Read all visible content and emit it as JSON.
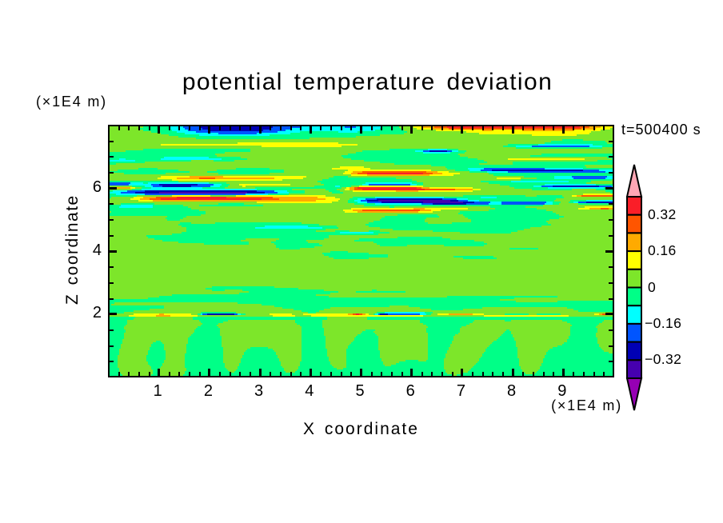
{
  "window": {
    "background": "#ffffff"
  },
  "chart_data": {
    "type": "filled_contour",
    "title": "potential temperature deviation",
    "annotation": "t=500400 s",
    "xlabel": "X coordinate",
    "x_unit": "(×1E4 m)",
    "ylabel": "Z coordinate",
    "y_unit": "(×1E4 m)",
    "x_range": [
      0,
      10
    ],
    "z_range": [
      0,
      8
    ],
    "x_major_ticks": [
      1,
      2,
      3,
      4,
      5,
      6,
      7,
      8,
      9
    ],
    "x_tick_labels": [
      "1",
      "2",
      "3",
      "4",
      "5",
      "6",
      "7",
      "8",
      "9"
    ],
    "x_minor_step": 0.2,
    "z_major_ticks": [
      2,
      4,
      6
    ],
    "z_tick_labels": [
      "2",
      "4",
      "6"
    ],
    "z_minor_step": 0.5,
    "grid": false,
    "levels": [
      -0.4,
      -0.32,
      -0.24,
      -0.16,
      -0.08,
      0.0,
      0.08,
      0.16,
      0.24,
      0.32,
      0.4
    ],
    "band_colors": [
      "#9600b4",
      "#4600af",
      "#0000b4",
      "#0055ff",
      "#00ffff",
      "#00ff87",
      "#7de62a",
      "#ffff00",
      "#ffaa00",
      "#ff5500",
      "#fa1e28",
      "#ffa6b4"
    ],
    "colorbar": {
      "orientation": "vertical",
      "labels": [
        {
          "text": "0.32",
          "level": 0.32
        },
        {
          "text": "0.16",
          "level": 0.16
        },
        {
          "text": "0",
          "level": 0.0
        },
        {
          "text": "−0.16",
          "level": -0.16
        },
        {
          "text": "−0.32",
          "level": -0.32
        }
      ],
      "over_color": "#ffa6b4",
      "under_color": "#9600b4"
    },
    "field": {
      "nx": 316,
      "nz": 158,
      "order": "rows bottom-to-top; run-length encoded as <bandHex>x<count>,...",
      "band_meaning": "band index k points into band_colors; band k spans levels[k-1]..levels[k]",
      "rows": [
        "5x10,6x15,5x8,6x12,5x271",
        "5x9,6x18,5x5,6x15,5x168,6x3,5x98",
        "5x8,6x20,5x4,6x16,5x66,6x1,5x97,6x10,5x39,6x6,5x49",
        "5x7,6x21,5x3,6x17,5x28,6x3,5x32,6x6,5x94,6x14,5x34,6x9,5x48",
        "5x7,6x21,5x4,6x17,5x26,6x5,5x30,6x8,5x93,6x15,5x33,6x10,5x47",
        "5x7,6x20,5x5,6x17,5x25,6x7,5x29,6x9,5x24,6x4,5x63,6x17,5x31,6x12,5x46",
        "5x6,6x21,5x6,6x15,5x25,6x8,5x28,6x10,5x22,6x8,5x61,6x18,5x30,6x12,5x46",
        "5x6,6x20,5x8,6x14,5x25,6x9,5x26,6x12,5x20,6x9,5x24,6x4,5x33,6x19,5x28,6x14,5x45",
        "5x6,6x19,5x9,6x14,5x25,6x9,5x26,6x12,5x19,6x10,5x23,6x8,5x30,6x20,5x27,6x14,5x45",
        "5x6,6x19,5x10,6x13,5x24,6x11,5x25,6x12,5x19,6x10,5x23,6x10,5x28,6x21,5x26,6x15,5x44",
        "5x6,6x18,5x11,6x13,5x24,6x11,5x24,6x14,5x17,6x11,5x22,6x15,5x8,6x5,5x11,6x22,5x25,6x15,5x44",
        "5x6,6x18,5x12,6x12,5x24,6x11,5x24,6x14,5x17,6x11,5x22,6x29,5x10,6x22,5x25,6x15,5x44",
        "5x6,6x18,5x12,6x12,5x24,6x12,5x22,6x15,5x17,6x11,5x21,6x30,5x11,6x22,5x23,6x17,5x43",
        "5x6,6x18,5x12,6x12,5x24,6x12,5x22,6x15,5x16,6x12,5x21,6x30,5x11,6x23,5x22,6x17,5x43",
        "5x7,6x18,5x11,6x12,5x24,6x13,5x20,6x16,5x16,6x12,5x21,6x30,5x11,6x23,5x22,6x18,5x42",
        "5x7,6x18,5x11,6x13,5x23,6x13,5x20,6x16,5x16,6x12,5x21,6x30,5x12,6x23,5x21,6x18,5x39,6x3",
        "5x7,6x18,5x11,6x13,5x23,6x14,5x18,6x17,5x16,6x12,5x21,6x30,5x12,6x24,5x20,6x19,5x35,6x6",
        "5x7,6x19,5x9,6x14,5x23,6x15,5x16,6x18,5x16,6x12,5x20,6x31,5x13,6x23,5x20,6x20,5x33,6x7",
        "5x8,6x18,5x9,6x14,5x23,6x17,5x11,6x21,5x15,6x14,5x19,6x31,5x13,6x24,5x19,6x22,5x30,6x8",
        "5x8,6x19,5x8,6x14,5x22,6x50,5x15,6x14,5x19,6x31,5x14,6x24,5x17,6x26,5x26,6x9",
        "5x8,6x19,5x8,6x14,5x22,6x50,5x15,6x15,5x18,6x31,5x14,6x25,5x16,6x29,5x23,6x9",
        "5x9,6x19,5x6,6x16,5x21,6x50,5x15,6x16,5x17,6x31,5x15,6x25,5x15,6x30,5x21,6x10",
        "5x9,6x21,5x3,6x17,5x21,6x50,5x15,6x17,5x16,6x31,5x15,6x26,5x14,6x32,5x19,6x10",
        "5x9,6x41,5x21,6x50,5x15,6x18,5x15,6x31,5x16,6x27,5x11,6x33,5x19,6x10",
        "5x10,6x40,5x21,6x50,5x15,6x18,5x15,6x31,5x16,6x28,5x10,6x34,5x18,6x10",
        "5x10,6x41,5x20,6x50,5x15,6x19,5x14,6x31,5x16,6x29,5x8,6x35,5x17,6x11",
        "5x10,6x42,5x18,6x51,5x14,6x21,5x12,6x32,5x17,6x29,5x7,6x36,5x16,6x11",
        "5x10,6x43,5x17,6x51,5x14,6x23,5x9,6x33,5x19,6x28,5x5,6x37,5x16,6x11",
        "5x11,6x43,5x16,6x51,5x14,6x24,5x7,6x33,5x21,6x28,5x4,6x37,5x17,6x10",
        "5x11,6x43,5x16,6x51,5x14,6x26,5x6,6x32,5x21,6x29,5x2,6x38,5x17,6x10",
        "5x10,6x45,5x15,6x51,5x14,6x64,5x21,6x69,5x17,6x10",
        "5x10,6x46,5x13,6x52,5x13,6x66,5x21,6x68,5x16,6x11",
        "5x11,6x47,5x10,6x52,5x14,6x65,5x25,6x66,5x16,6x10",
        "5x12,6x47,5x10,6x49,5x16,6x63,5x29,6x63,5x18,6x9",
        "5x12,6x46,5x14,6x45,5x17,6x61,5x33,6x59,5x22,6x7",
        "5x12,6x45,5x18,6x42,5x17,6x61,5x34,6x19,5x4,6x32,5x26,6x6",
        "5x16,6x37,5x84,6x25,5x154",
        "5x17,6x36,5x84,6x25,5x154",
        "6x13,7x17,8x9,7x17,6x47,7x14,6x10,7x70,6x38,7x53,6x28",
        "6x16,7x16,8x3,7x17,6x4,5x2,4x1,3x3,2x17,3x2,4x2,5x3,6x15,7x14,6x7,7x28,8x3,9x2,ax2,9x2,8x2,7x2,6x3,5x1,4x2,3x1,2x5,3x20,4x4,5x3,6x4,7x7,8x15,7x7,6x13,5x15,6x5,5x15,6x21,7x3,8x2,9x7",
        "5x10,6x48,5x22,6x45,5x5,6x38,5x5,4x25,5x5,6x113",
        "5x16,6x105,5x11,6x162,5x22",
        "5x26,6x90,5x19,6x67,5x20,6x69,5x25",
        "5x35,6x74,5x30,6x56,5x39,6x53,5x29",
        "5x35,6x69,5x72,6x12,5x128",
        "5x2,6x94,5x220",
        "5x4,6x77,5x235",
        "5x255,6x26,5x35",
        "5x245,6x71",
        "6x25,5x229,6x62",
        "6x32,5x106,6x74,5x69,6x35",
        "6x40,5x90,6x186",
        "6x82,5x57,6x177",
        "6x88,5x56,6x11,5x31,6x130",
        "6x65,5x8,6x11,5x51,6x30,5x3,6x148",
        "6x61,5x58,6x197",
        "6x65,5x39,6x212",
        "6x316",
        "6x316",
        "6x316",
        "6x316",
        "6x316",
        "6x316",
        "6x316",
        "6x316",
        "6x316",
        "6x316",
        "6x316",
        "6x316",
        "6x316",
        "6x316",
        "6x316",
        "6x316",
        "6x316",
        "6x141,5x22,6x59,5x21,6x73",
        "6x138,5x37,6x41,5x25,6x75",
        "6x135,5x40,6x141",
        "6x134,5x29,6x153",
        "6x139,5x11,6x166",
        "6x316",
        "6x107,5x13,6x131,5x18,6x47",
        "6x105,5x24,6x187",
        "6x105,5x29,6x36,5x17,6x23,5x25,6x81",
        "6x60,5x28,6x16,5x28,6x36,5x69,6x79",
        "6x44,5x44,6x14,5x23,6x41,5x69,6x81",
        "6x34,5x49,6x22,5x19,6x30,5x75,6x87",
        "6x29,5x57,6x21,5x28,6x22,5x57,6x102",
        "6x25,5x113,6x43,5x28,6x107",
        "6x24,5x114,6x178",
        "6x40,5x129,6x147",
        "6x46,5x99,4x21,5x10,6x44,5x32,6x64",
        "6x49,5x81,6x12,5x9,6x12,5x7,6x33,5x53,6x60",
        "6x49,5x87,6x42,5x82,6x56",
        "6x49,5x43,4x42,5x10,6x26,5x94,6x52",
        "6x46,5x52,4x27,5x18,6x20,5x108,6x45",
        "6x44,5x88,6x29,5x116,6x39",
        "6x45,5x7,6x15,5x54,6x42,5x37,6x15,5x60,6x41",
        "6x166,5x32,6x29,5x47,6x42",
        "6x37,5x8,6x125,5x28,6x29,5x49,6x40",
        "6x36,5x11,6x124,5x28,6x26,5x57,6x34",
        "6x37,5x12,6x124,5x34,6x16,5x62,6x31",
        "5x58,6x123,5x25,6x16,5x60,6x34",
        "5x61,6x158,5x61,6x36",
        "6x2,5x59,6x87,7x8,8x38,7x9,6x17,5x58,6x38",
        "6x1,5x56,6x90,7x6,8x6,9x36,8x7,7x6,6x30,5x36,6x42",
        "6x1,5x51,6x100,7x39,8x7,7x27,6x17,5x26,6x26,7x7,8x7,9x5,8x3",
        "5x7,4x21,5x22,6x126,5x3,6x60,5x22,6x37,7x18",
        "5x8,4x20,5x19,6x10,5x40,6x63,5x112,6x44",
        "6x8,5x21,6x40,5x16,6x69,5x13,4x29,3x7,2x21,3x14,4x8,3x27,4x5,5x4,6x12,5x22",
        "6x93,7x47,6x10,5x6,4x6,3x9,2x26,1x25,2x7,3x10,4x7,3x28,4x4,5x5,6x5,5x3,4x3,3x5,2x17",
        "6x19,7x9,8x102,7x14,6x6,5x4,4x4,3x4,2x7,1x45,2x5,3x6,4x7,5x47,6x10,5x10,4x17",
        "6x14,7x6,8x6,9x7,ax63,9x11,8x29,7x9,6x6,5x5,4x5,3x7,2x41,3x9,4x7,5x55,6x36",
        "5x2,6x14,7x6,8x8,9x13,ax31,9x29,8x28,7x11,6x11,5x14,4x43,5x23,4x10,5x42,6x31",
        "5x18,6x22,7x24,6x16,7x56,6x86,5x39,6x7,5x16,6x6,7x3,8x3,9x20",
        "5x5,4x18,3x63,4x14,5x13,6x184,7x19",
        "4x8,3x9,2x15,1x55,2x11,3x8,4x7,5x10,6x17,5x7,6x167,5x2",
        "5x3,4x9,3x11,2x70,3x11,4x8,5x11,6x15,5x7,6x8,7x27,8x14,7x34,6x83,5x5",
        "6x15,5x6,4x72,5x22,6x21,5x7,6x5,7x3,8x3,9x5,ax39,9x19,8x11,7x5,6x32,5x25,6x15,5x11",
        "7x1,8x13,7x3,6x4,5x6,4x32,5x14,6x19,5x54,6x3,7x2,8x3,9x2,ax37,9x3,8x5,7x27,6x26,5x21,4x35,5x6",
        "6x15,5x8,4x5,3x6,2x18,3x12,4x6,5x5,6x9,7x2,6x43,5x13,4x3,5x7,6x5,7x40,6x54,5x15,4x5,3x7,2x29,3x8,4x1",
        "4x1,3x12,4x14,3x5,2x24,3x10,4x5,5x5,6x6,7x32,6x21,5x24,4x4,3x26,4x4,5x4,6x48,5x28,4x32,5x11",
        "3x14,4x8,5x3,4x38,5x11,6x59,5x28,4x29,5x7,6x41,5x61,6x17",
        "5x44,6x87,5x62,6x40,5x19,4x36,5x14,6x14",
        "6x40,7x69,6x25,5x56,6x68,5x57,6x1",
        "6x31,7x12,8x14,9x10,8x37,7x18,6x16,5x42,6x63,7x15,6x10,5x11,4x12,3x20,4x5",
        "6x33,7x18,8x21,7x52,6x17,5x9,6x110,5x19,4x11,3x22,4x4",
        "6x152,7x10,8x39,7x15,6x25,5x75",
        "6x10,5x26,6x33,5x32,6x46,7x5,8x4,9x6,ax35,9x6,8x6,7x11,6x18,5x78",
        "5x51,6x11,5x48,6x38,7x5,8x6,9x40,8x7,7x7,6x13,5x11,4x13,3x61,4x5",
        "6x6,5x38,6x24,5x42,6x40,7x52,6x15,5x9,4x7,3x7,2x57,3x10,4x9",
        "6x19,5x12,6x49,5x21,6x39,7x24,6x48,5x13,4x10,3x38,4x24,5x19",
        "6x145,7x15,6x51,5x88,6x17",
        "6x202,5x96,6x18",
        "5x5,6x174,5x53,6x21,5x63",
        "5x23,6x147,5x67,6x16,5x63",
        "4x17,5x35,6x14,5x13,6x81,5x75,6x71,5x10",
        "5x7,4x4,5x22,4x38,5x16,6x65,5x79,6x19,7x48,6x17,5x1",
        "5x35,4x28,5x20,6x64,5x78,6x87,5x4",
        "5x68,6x78,5x74,6x44,5x52",
        "5x67,6x83,5x69,6x52,5x45",
        "6x1,5x72,6x82,5x42,4x17,5x9,6x93",
        "6x11,5x78,6x70,5x33,4x5,3x4,2x11,3x3,4x4,5x5,6x92",
        "6x22,5x67,6x87,5x24,4x12,5x7,6x97",
        "6x255,5x54,6x7",
        "6x96,7x50,6x101,5x8,4x10,3x36,4x8,5x7",
        "6x33,7x123,6x94,5x19,4x34,5x13",
        "6x81,7x63,6x129,5x39,6x4",
        "6x277,5x34,6x5",
        "6x284,5x13,6x19",
        "6x55,5x71,6x190",
        "6x44,5x111,6x161",
        "6x38,5x19,4x44,5x69,6x95,7x28,6x23",
        "6x33,5x15,4x21,3x24,4x21,5x71,6x47,7x69,6x15",
        "6x27,5x16,4x12,3x51,4x14,5x24,4x12,5x31,6x37,7x78,6x14",
        "6x22,5x18,4x10,3x14,2x33,3x14,4x56,5x18,6x20,7x29,8x6,7x19,8x32,7x17,6x8",
        "6x20,5x18,4x10,3x11,2x42,3x14,4x55,5x13,6x10,7x9,8x11,9x83,8x9,7x9,6x2",
        "6x22,5x16,4x9,3x11,2x45,3x17,4x28,3x7,4x16,5x11,6x9,7x6,8x7,9x8,ax83,9x6,8x7,7x8",
        "6x4,7x10,6x9,5x14,4x10,3x10,2x48,3x21,4x18,3x13,4x16,5x11,6x8,7x8,8x8,9x21,ax56,9x11,8x8,7x9,6x3"
      ]
    }
  }
}
